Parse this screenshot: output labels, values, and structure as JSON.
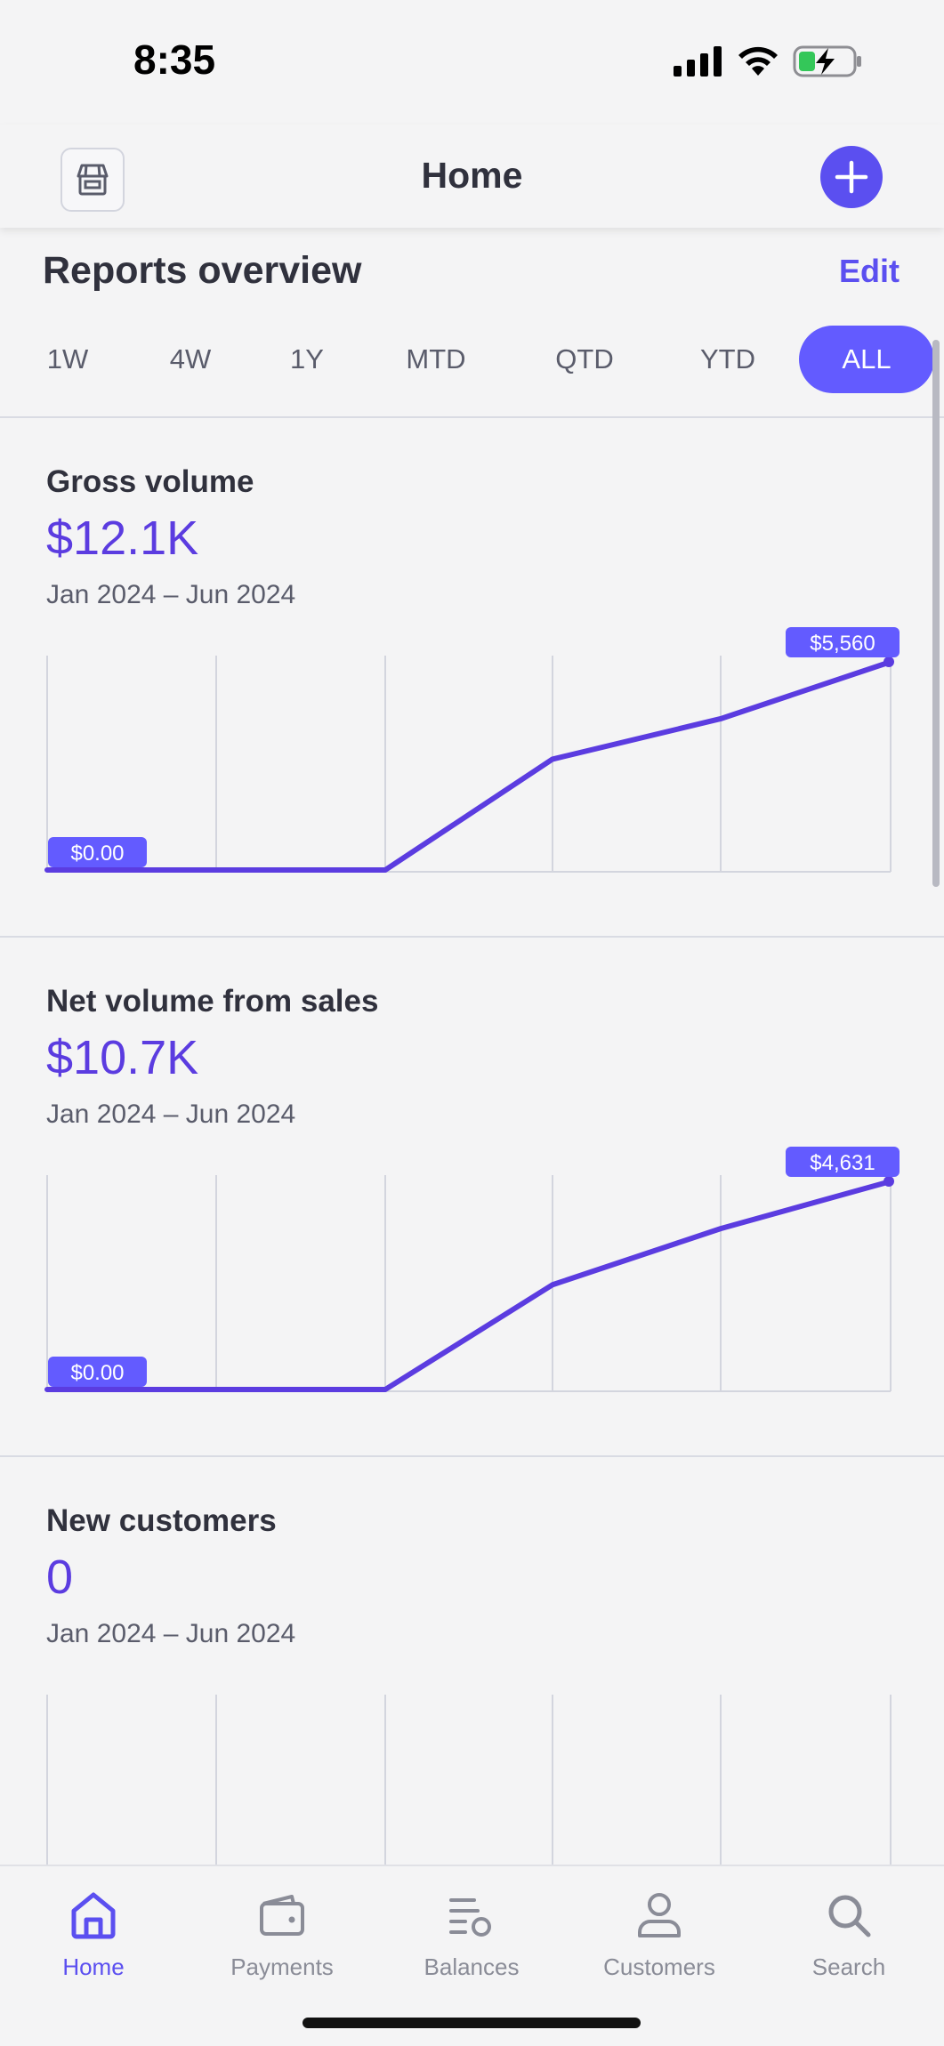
{
  "status": {
    "time": "8:35"
  },
  "header": {
    "title": "Home"
  },
  "reports": {
    "title": "Reports overview",
    "edit_label": "Edit",
    "ranges": [
      "1W",
      "4W",
      "1Y",
      "MTD",
      "QTD",
      "YTD",
      "ALL"
    ],
    "active_range": "ALL"
  },
  "cards": [
    {
      "title": "Gross volume",
      "value": "$12.1K",
      "range": "Jan 2024 – Jun 2024",
      "start_label": "$0.00",
      "end_label": "$5,560",
      "chart_data": {
        "type": "line",
        "x": [
          1,
          2,
          3,
          4,
          5,
          6
        ],
        "values": [
          0,
          0,
          0,
          2960,
          4040,
          5560
        ]
      }
    },
    {
      "title": "Net volume from sales",
      "value": "$10.7K",
      "range": "Jan 2024 – Jun 2024",
      "start_label": "$0.00",
      "end_label": "$4,631",
      "chart_data": {
        "type": "line",
        "x": [
          1,
          2,
          3,
          4,
          5,
          6
        ],
        "values": [
          0,
          0,
          0,
          2330,
          3580,
          4631
        ]
      }
    },
    {
      "title": "New customers",
      "value": "0",
      "range": "Jan 2024 – Jun 2024"
    }
  ],
  "tabs": [
    {
      "label": "Home",
      "icon": "home-icon",
      "active": true
    },
    {
      "label": "Payments",
      "icon": "wallet-icon",
      "active": false
    },
    {
      "label": "Balances",
      "icon": "balances-icon",
      "active": false
    },
    {
      "label": "Customers",
      "icon": "person-icon",
      "active": false
    },
    {
      "label": "Search",
      "icon": "search-icon",
      "active": false
    }
  ],
  "colors": {
    "accent": "#635bff",
    "line": "#5b3ce0",
    "text": "#30313d",
    "muted": "#5a5c6b"
  }
}
